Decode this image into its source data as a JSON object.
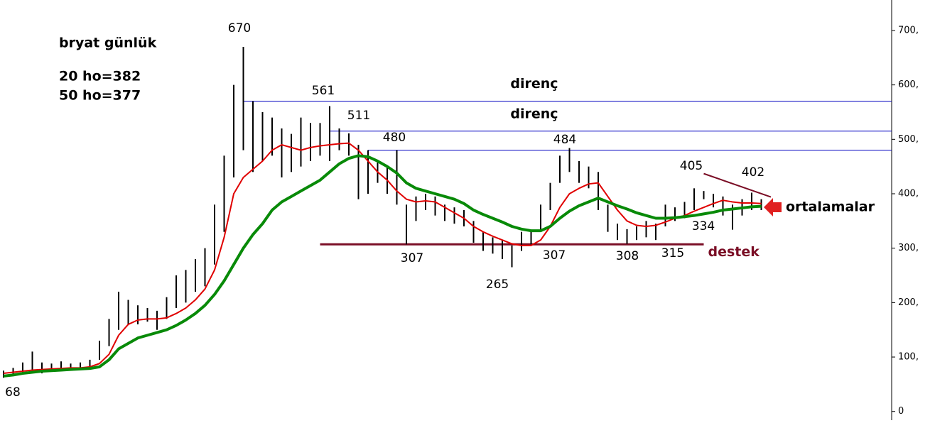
{
  "chart_data": {
    "type": "candlestick",
    "title": "bryat günlük",
    "notes": [
      "20 ho=382",
      "50 ho=377"
    ],
    "high": [
      75,
      80,
      90,
      110,
      90,
      88,
      92,
      88,
      90,
      95,
      130,
      170,
      220,
      205,
      195,
      190,
      185,
      210,
      250,
      260,
      280,
      300,
      380,
      470,
      600,
      670,
      570,
      550,
      540,
      520,
      510,
      540,
      530,
      530,
      561,
      520,
      511,
      490,
      480,
      460,
      450,
      480,
      380,
      395,
      400,
      395,
      380,
      375,
      370,
      350,
      330,
      320,
      315,
      305,
      330,
      330,
      380,
      420,
      470,
      484,
      460,
      450,
      440,
      380,
      345,
      335,
      340,
      350,
      345,
      380,
      375,
      385,
      410,
      405,
      400,
      395,
      380,
      390,
      402,
      390
    ],
    "low": [
      62,
      65,
      70,
      75,
      70,
      75,
      78,
      75,
      78,
      80,
      95,
      120,
      150,
      160,
      160,
      165,
      150,
      170,
      190,
      200,
      220,
      230,
      270,
      330,
      430,
      480,
      440,
      460,
      470,
      430,
      440,
      450,
      460,
      470,
      460,
      480,
      470,
      390,
      400,
      420,
      400,
      380,
      307,
      350,
      370,
      360,
      350,
      345,
      340,
      310,
      295,
      290,
      280,
      265,
      295,
      307,
      330,
      370,
      420,
      440,
      420,
      410,
      370,
      330,
      315,
      308,
      315,
      320,
      315,
      340,
      350,
      355,
      370,
      390,
      375,
      360,
      334,
      360,
      370,
      370
    ],
    "series": [
      {
        "color": "#e00000",
        "values": [
          70,
          72,
          74,
          76,
          77,
          78,
          79,
          80,
          80,
          82,
          88,
          105,
          140,
          160,
          168,
          170,
          170,
          172,
          180,
          190,
          205,
          225,
          260,
          320,
          400,
          430,
          445,
          460,
          480,
          490,
          485,
          480,
          485,
          488,
          490,
          492,
          493,
          480,
          460,
          440,
          425,
          405,
          390,
          385,
          387,
          385,
          375,
          365,
          355,
          340,
          330,
          322,
          315,
          308,
          305,
          305,
          315,
          340,
          375,
          400,
          410,
          418,
          420,
          395,
          370,
          350,
          342,
          340,
          342,
          348,
          355,
          360,
          368,
          375,
          382,
          388,
          385,
          383,
          383,
          382
        ]
      },
      {
        "color": "#088a08",
        "values": [
          65,
          67,
          70,
          72,
          74,
          75,
          76,
          77,
          78,
          79,
          82,
          95,
          115,
          125,
          135,
          140,
          145,
          150,
          158,
          168,
          180,
          195,
          215,
          240,
          270,
          300,
          325,
          345,
          370,
          385,
          395,
          405,
          415,
          425,
          440,
          455,
          465,
          470,
          468,
          460,
          450,
          438,
          420,
          410,
          405,
          400,
          395,
          390,
          382,
          370,
          362,
          355,
          348,
          340,
          335,
          332,
          332,
          340,
          355,
          368,
          378,
          385,
          392,
          385,
          378,
          372,
          365,
          360,
          355,
          355,
          356,
          358,
          360,
          363,
          366,
          370,
          372,
          374,
          376,
          377
        ]
      }
    ],
    "candle_color": "#000000",
    "ylim": [
      -16,
      756
    ],
    "yticks": [
      0,
      {
        "value": 100,
        "label": "100,"
      },
      {
        "value": 200,
        "label": "200,"
      },
      {
        "value": 300,
        "label": "300,"
      },
      {
        "value": 400,
        "label": "400,"
      },
      {
        "value": 500,
        "label": "500,"
      },
      {
        "value": 600,
        "label": "600,"
      },
      {
        "value": 700,
        "label": "700,"
      }
    ],
    "levels": [
      {
        "label": "direnç",
        "value": 570,
        "from": 25,
        "color": "#0000c0"
      },
      {
        "label": "direnç",
        "value": 515,
        "from": 34,
        "color": "#0000c0"
      },
      {
        "value": 480,
        "from": 38,
        "color": "#0000c0"
      },
      {
        "label": "destek",
        "value": 307,
        "from": 33,
        "to": 73,
        "color": "#7a0d25"
      }
    ],
    "trendline": {
      "from": 73,
      "to": 80,
      "values": [
        437,
        394
      ],
      "color": "#7a0d25"
    },
    "annotations": [
      "670",
      "561",
      "511",
      "480",
      "484",
      "405",
      "402",
      "307",
      "265",
      "307",
      "308",
      "315",
      "334",
      "68"
    ],
    "arrow_label": "ortalamalar"
  }
}
